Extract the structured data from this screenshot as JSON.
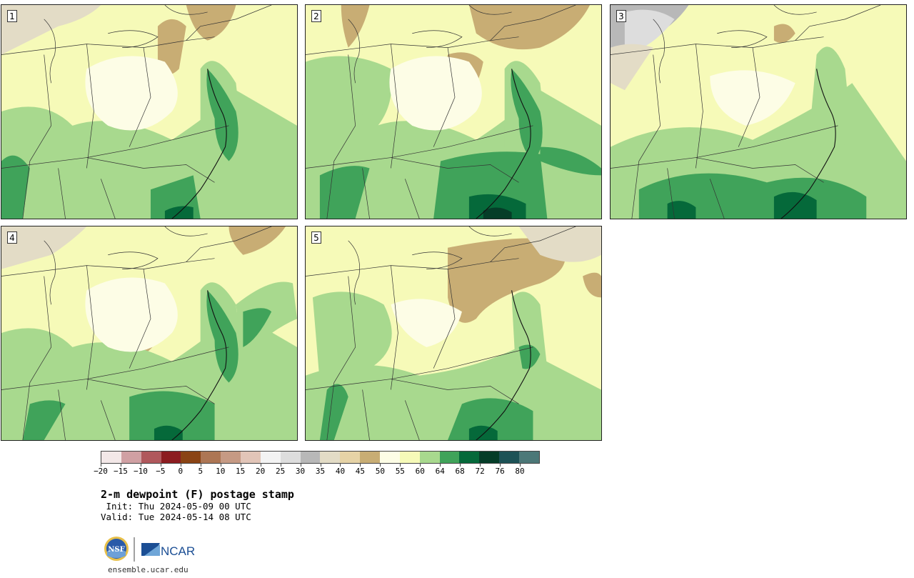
{
  "title": "2-m dewpoint (F) postage stamp",
  "init": {
    "label": "Init:",
    "value": "Thu 2024-05-09 00 UTC"
  },
  "valid": {
    "label": "Valid:",
    "value": "Tue 2024-05-14 08 UTC"
  },
  "footer_url": "ensemble.ucar.edu",
  "logos": {
    "nsf_text": "NSF",
    "ncar_text": "NCAR"
  },
  "panels": [
    {
      "label": "1"
    },
    {
      "label": "2"
    },
    {
      "label": "3"
    },
    {
      "label": "4"
    },
    {
      "label": "5"
    }
  ],
  "colorbar": {
    "colors": [
      "#f3e8e8",
      "#d0a0a3",
      "#b0585c",
      "#8c1c20",
      "#8a4414",
      "#ad7654",
      "#c69a84",
      "#e2c5b8",
      "#f3f3f3",
      "#dddddd",
      "#b8b8b8",
      "#e3dcc6",
      "#e6d3a6",
      "#c8ad74",
      "#fdfde6",
      "#f6fab8",
      "#a8d98e",
      "#40a35a",
      "#05693a",
      "#053d28",
      "#1d5256",
      "#4c7878"
    ],
    "tick_labels": [
      "−20",
      "−15",
      "−10",
      "−5",
      "0",
      "5",
      "10",
      "15",
      "20",
      "25",
      "30",
      "35",
      "40",
      "45",
      "50",
      "55",
      "60",
      "64",
      "68",
      "72",
      "76",
      "80"
    ]
  }
}
